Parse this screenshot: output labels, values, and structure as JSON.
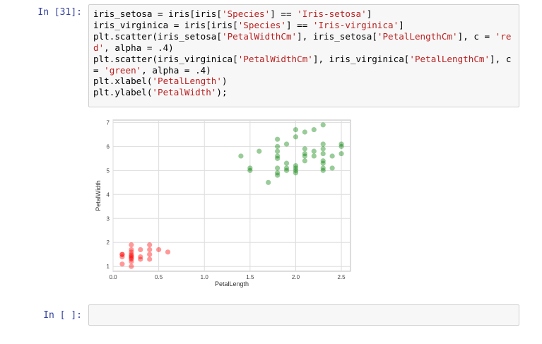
{
  "cells": [
    {
      "prompt": "In [31]:",
      "code_lines": [
        [
          {
            "t": "iris_setosa = iris[iris["
          },
          {
            "t": "'Species'",
            "s": 1
          },
          {
            "t": "] == "
          },
          {
            "t": "'Iris-setosa'",
            "s": 1
          },
          {
            "t": "]"
          }
        ],
        [
          {
            "t": "iris_virginica = iris[iris["
          },
          {
            "t": "'Species'",
            "s": 1
          },
          {
            "t": "] == "
          },
          {
            "t": "'Iris-virginica'",
            "s": 1
          },
          {
            "t": "]"
          }
        ],
        [
          {
            "t": "plt.scatter(iris_setosa["
          },
          {
            "t": "'PetalWidthCm'",
            "s": 1
          },
          {
            "t": "], iris_setosa["
          },
          {
            "t": "'PetalLengthCm'",
            "s": 1
          },
          {
            "t": "], c = "
          },
          {
            "t": "'re",
            "s": 1
          }
        ],
        [
          {
            "t": "d'",
            "s": 1
          },
          {
            "t": ", alpha = .4)"
          }
        ],
        [
          {
            "t": "plt.scatter(iris_virginica["
          },
          {
            "t": "'PetalWidthCm'",
            "s": 1
          },
          {
            "t": "], iris_virginica["
          },
          {
            "t": "'PetalLengthCm'",
            "s": 1
          },
          {
            "t": "], c"
          }
        ],
        [
          {
            "t": "= "
          },
          {
            "t": "'green'",
            "s": 1
          },
          {
            "t": ", alpha = .4)"
          }
        ],
        [
          {
            "t": "plt.xlabel("
          },
          {
            "t": "'PetalLength'",
            "s": 1
          },
          {
            "t": ")"
          }
        ],
        [
          {
            "t": "plt.ylabel("
          },
          {
            "t": "'PetalWidth'",
            "s": 1
          },
          {
            "t": ");"
          }
        ]
      ]
    },
    {
      "prompt": "In [ ]:",
      "code_lines": []
    }
  ],
  "chart_data": {
    "type": "scatter",
    "xlabel": "PetalLength",
    "ylabel": "PetalWidth",
    "xlim": [
      0,
      2.6
    ],
    "ylim": [
      0.8,
      7.1
    ],
    "xticks": [
      0.0,
      0.5,
      1.0,
      1.5,
      2.0,
      2.5
    ],
    "xtick_labels": [
      "0.0",
      "0.5",
      "1.0",
      "1.5",
      "2.0",
      "2.5"
    ],
    "yticks": [
      1,
      2,
      3,
      4,
      5,
      6,
      7
    ],
    "ytick_labels": [
      "1",
      "2",
      "3",
      "4",
      "5",
      "6",
      "7"
    ],
    "grid": true,
    "series": [
      {
        "color": "#ff0000",
        "alpha": 0.4,
        "points": [
          [
            0.1,
            1.4
          ],
          [
            0.1,
            1.5
          ],
          [
            0.1,
            1.1
          ],
          [
            0.1,
            1.5
          ],
          [
            0.2,
            1.4
          ],
          [
            0.2,
            1.3
          ],
          [
            0.2,
            1.5
          ],
          [
            0.2,
            1.6
          ],
          [
            0.2,
            1.2
          ],
          [
            0.2,
            1.7
          ],
          [
            0.2,
            1.9
          ],
          [
            0.2,
            1.0
          ],
          [
            0.2,
            1.45
          ],
          [
            0.2,
            1.35
          ],
          [
            0.3,
            1.3
          ],
          [
            0.3,
            1.4
          ],
          [
            0.3,
            1.7
          ],
          [
            0.4,
            1.5
          ],
          [
            0.4,
            1.3
          ],
          [
            0.4,
            1.7
          ],
          [
            0.4,
            1.9
          ],
          [
            0.5,
            1.7
          ],
          [
            0.6,
            1.6
          ]
        ]
      },
      {
        "color": "#008000",
        "alpha": 0.4,
        "points": [
          [
            1.4,
            5.6
          ],
          [
            1.5,
            5.0
          ],
          [
            1.5,
            5.1
          ],
          [
            1.6,
            5.8
          ],
          [
            1.7,
            4.5
          ],
          [
            1.8,
            4.8
          ],
          [
            1.8,
            4.9
          ],
          [
            1.8,
            5.1
          ],
          [
            1.8,
            5.5
          ],
          [
            1.8,
            5.6
          ],
          [
            1.8,
            5.8
          ],
          [
            1.8,
            6.0
          ],
          [
            1.8,
            6.3
          ],
          [
            1.9,
            5.0
          ],
          [
            1.9,
            5.1
          ],
          [
            1.9,
            5.3
          ],
          [
            1.9,
            6.1
          ],
          [
            2.0,
            4.9
          ],
          [
            2.0,
            5.0
          ],
          [
            2.0,
            5.1
          ],
          [
            2.0,
            5.2
          ],
          [
            2.0,
            6.4
          ],
          [
            2.0,
            6.7
          ],
          [
            2.1,
            5.4
          ],
          [
            2.1,
            5.6
          ],
          [
            2.1,
            5.7
          ],
          [
            2.1,
            5.9
          ],
          [
            2.1,
            6.6
          ],
          [
            2.2,
            5.6
          ],
          [
            2.2,
            5.8
          ],
          [
            2.2,
            6.7
          ],
          [
            2.3,
            5.0
          ],
          [
            2.3,
            5.1
          ],
          [
            2.3,
            5.3
          ],
          [
            2.3,
            5.4
          ],
          [
            2.3,
            5.7
          ],
          [
            2.3,
            5.9
          ],
          [
            2.3,
            6.1
          ],
          [
            2.3,
            6.9
          ],
          [
            2.4,
            5.1
          ],
          [
            2.4,
            5.6
          ],
          [
            2.5,
            5.7
          ],
          [
            2.5,
            6.0
          ],
          [
            2.5,
            6.1
          ]
        ]
      }
    ]
  }
}
